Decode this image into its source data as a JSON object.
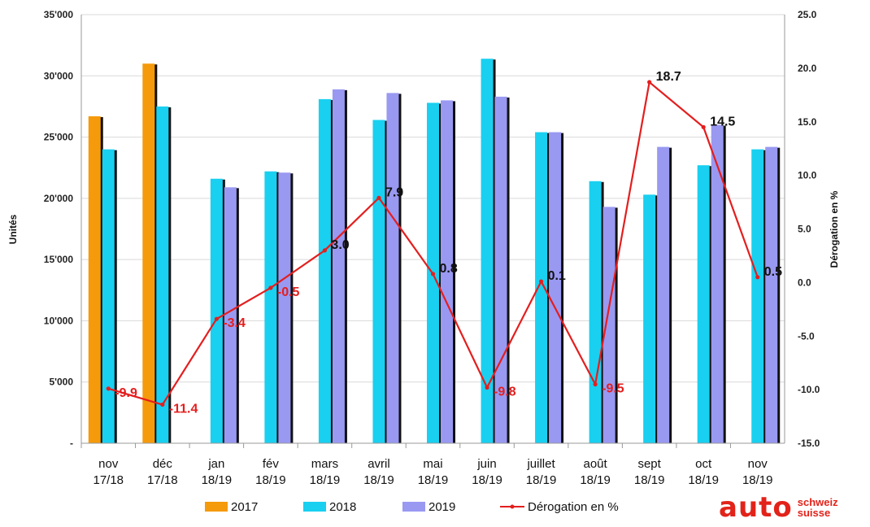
{
  "chart_data": {
    "type": "bar",
    "categories": [
      "nov\n17/18",
      "déc\n17/18",
      "jan\n18/19",
      "fév\n18/19",
      "mars\n18/19",
      "avril\n18/19",
      "mai\n18/19",
      "juin\n18/19",
      "juillet\n18/19",
      "août\n18/19",
      "sept\n18/19",
      "oct\n18/19",
      "nov\n18/19"
    ],
    "series": [
      {
        "name": "2017",
        "color": "#f59a0a",
        "values": [
          26700,
          31000,
          null,
          null,
          null,
          null,
          null,
          null,
          null,
          null,
          null,
          null,
          null
        ]
      },
      {
        "name": "2018",
        "color": "#19d0f0",
        "values": [
          24000,
          27500,
          21600,
          22200,
          28100,
          26400,
          27800,
          31400,
          25400,
          21400,
          20300,
          22700,
          24000
        ]
      },
      {
        "name": "2019",
        "color": "#9999f2",
        "values": [
          null,
          null,
          20900,
          22100,
          28900,
          28600,
          28000,
          28300,
          25400,
          19300,
          24200,
          26000,
          24200
        ]
      }
    ],
    "line": {
      "name": "Dérogation en %",
      "color": "#e41e1e",
      "values": [
        -9.9,
        -11.4,
        -3.4,
        -0.5,
        3.0,
        7.9,
        0.8,
        -9.8,
        0.1,
        -9.5,
        18.7,
        14.5,
        0.5
      ],
      "labels": [
        "-9.9",
        "-11.4",
        "-3.4",
        "-0.5",
        "3.0",
        "7.9",
        "0.8",
        "-9.8",
        "0.1",
        "-9.5",
        "18.7",
        "14.5",
        "0.5"
      ]
    },
    "ylabel": "Unités",
    "y2label": "Dérogation en %",
    "ylim": [
      0,
      35000
    ],
    "y2lim": [
      -15,
      25
    ],
    "yticks": [
      "-",
      "5'000",
      "10'000",
      "15'000",
      "20'000",
      "25'000",
      "30'000",
      "35'000"
    ],
    "y2ticks": [
      "-15.0",
      "-10.0",
      "-5.0",
      "0.0",
      "5.0",
      "10.0",
      "15.0",
      "20.0",
      "25.0"
    ],
    "grid": true,
    "legend_position": "bottom"
  },
  "logo": {
    "main": "auto",
    "sub1": "schweiz",
    "sub2": "suisse"
  }
}
